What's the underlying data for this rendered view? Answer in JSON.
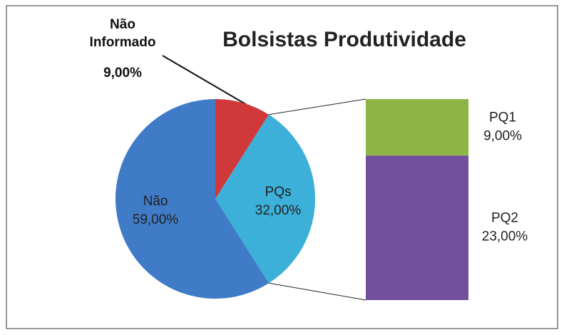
{
  "chart_data": {
    "type": "pie",
    "title": "Bolsistas Produtividade",
    "categories": [
      "Não Informado",
      "PQs",
      "Não"
    ],
    "values": [
      9,
      32,
      59
    ],
    "value_labels": [
      "9,00%",
      "32,00%",
      "59,00%"
    ],
    "colors": [
      "#d0393a",
      "#3cb0d8",
      "#3f7bc6"
    ],
    "breakdown": {
      "categories": [
        "PQ1",
        "PQ2"
      ],
      "values": [
        9,
        23
      ],
      "value_labels": [
        "9,00%",
        "23,00%"
      ],
      "colors": [
        "#8cb545",
        "#714f9c"
      ]
    }
  }
}
